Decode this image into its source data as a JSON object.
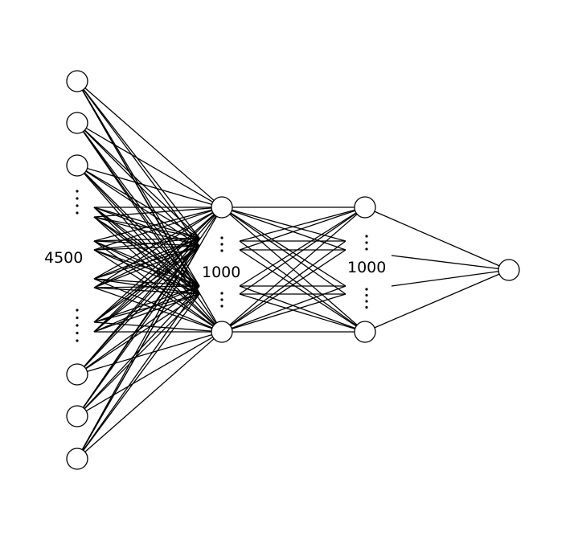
{
  "diagram": {
    "type": "neural-network",
    "colors": {
      "stroke": "#000000",
      "node_fill": "#ffffff"
    },
    "layers": [
      {
        "id": "input",
        "label": "4500"
      },
      {
        "id": "hidden1",
        "label": "1000"
      },
      {
        "id": "hidden2",
        "label": "1000"
      },
      {
        "id": "output",
        "label": ""
      }
    ]
  }
}
